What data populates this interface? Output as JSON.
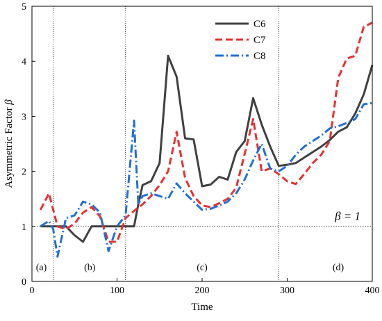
{
  "chart_data": {
    "type": "line",
    "xlabel": "Time",
    "ylabel": "Asymmetric Factor",
    "ylabel_symbol": "β",
    "xlim": [
      0,
      400
    ],
    "ylim": [
      0,
      5
    ],
    "xticks": [
      0,
      100,
      200,
      300,
      400
    ],
    "yticks": [
      0,
      1,
      2,
      3,
      4,
      5
    ],
    "grid": false,
    "legend_position": "top-right",
    "reference_line": {
      "y": 1,
      "label": "β = 1",
      "color": "#555555",
      "style": "dotted"
    },
    "phase_dividers": [
      25,
      110,
      290
    ],
    "phase_labels": [
      {
        "label": "(a)",
        "x": 11,
        "y": 0.2
      },
      {
        "label": "(b)",
        "x": 68,
        "y": 0.2
      },
      {
        "label": "(c)",
        "x": 200,
        "y": 0.2
      },
      {
        "label": "(d)",
        "x": 360,
        "y": 0.2
      }
    ],
    "series": [
      {
        "name": "C6",
        "color": "#404040",
        "dash": "solid",
        "points": [
          [
            10,
            1.0
          ],
          [
            20,
            1.0
          ],
          [
            30,
            1.0
          ],
          [
            40,
            1.0
          ],
          [
            50,
            0.84
          ],
          [
            60,
            0.72
          ],
          [
            70,
            1.0
          ],
          [
            80,
            1.0
          ],
          [
            90,
            1.0
          ],
          [
            100,
            1.0
          ],
          [
            110,
            1.0
          ],
          [
            120,
            1.0
          ],
          [
            125,
            1.4
          ],
          [
            130,
            1.75
          ],
          [
            140,
            1.82
          ],
          [
            150,
            2.15
          ],
          [
            160,
            4.1
          ],
          [
            170,
            3.72
          ],
          [
            180,
            2.6
          ],
          [
            190,
            2.58
          ],
          [
            200,
            1.73
          ],
          [
            210,
            1.76
          ],
          [
            220,
            1.9
          ],
          [
            230,
            1.85
          ],
          [
            240,
            2.35
          ],
          [
            250,
            2.55
          ],
          [
            260,
            3.33
          ],
          [
            270,
            2.85
          ],
          [
            280,
            2.45
          ],
          [
            290,
            2.1
          ],
          [
            300,
            2.12
          ],
          [
            310,
            2.15
          ],
          [
            320,
            2.25
          ],
          [
            330,
            2.35
          ],
          [
            340,
            2.45
          ],
          [
            350,
            2.57
          ],
          [
            360,
            2.72
          ],
          [
            370,
            2.8
          ],
          [
            380,
            3.05
          ],
          [
            390,
            3.4
          ],
          [
            400,
            3.93
          ]
        ]
      },
      {
        "name": "C7",
        "color": "#e83030",
        "dash": "10,5",
        "points": [
          [
            10,
            1.3
          ],
          [
            20,
            1.6
          ],
          [
            30,
            1.0
          ],
          [
            40,
            0.95
          ],
          [
            50,
            1.05
          ],
          [
            60,
            1.25
          ],
          [
            70,
            1.35
          ],
          [
            80,
            1.18
          ],
          [
            90,
            0.72
          ],
          [
            100,
            0.72
          ],
          [
            110,
            1.15
          ],
          [
            120,
            1.28
          ],
          [
            130,
            1.4
          ],
          [
            140,
            1.55
          ],
          [
            150,
            1.75
          ],
          [
            160,
            2.0
          ],
          [
            170,
            2.72
          ],
          [
            180,
            1.88
          ],
          [
            190,
            1.55
          ],
          [
            200,
            1.38
          ],
          [
            210,
            1.35
          ],
          [
            220,
            1.42
          ],
          [
            230,
            1.5
          ],
          [
            240,
            1.7
          ],
          [
            250,
            2.32
          ],
          [
            260,
            2.95
          ],
          [
            270,
            2.0
          ],
          [
            280,
            2.05
          ],
          [
            290,
            1.95
          ],
          [
            300,
            1.82
          ],
          [
            310,
            1.77
          ],
          [
            320,
            1.95
          ],
          [
            330,
            2.15
          ],
          [
            340,
            2.3
          ],
          [
            350,
            2.55
          ],
          [
            360,
            3.7
          ],
          [
            370,
            4.05
          ],
          [
            380,
            4.1
          ],
          [
            390,
            4.63
          ],
          [
            400,
            4.7
          ]
        ]
      },
      {
        "name": "C8",
        "color": "#1f6fd9",
        "dash": "12,4,2,4",
        "points": [
          [
            10,
            1.0
          ],
          [
            20,
            1.1
          ],
          [
            25,
            0.95
          ],
          [
            30,
            0.45
          ],
          [
            40,
            1.15
          ],
          [
            50,
            1.2
          ],
          [
            60,
            1.45
          ],
          [
            70,
            1.4
          ],
          [
            80,
            1.25
          ],
          [
            90,
            0.55
          ],
          [
            100,
            1.0
          ],
          [
            110,
            1.2
          ],
          [
            120,
            2.92
          ],
          [
            125,
            1.4
          ],
          [
            130,
            1.55
          ],
          [
            140,
            1.6
          ],
          [
            150,
            1.55
          ],
          [
            160,
            1.5
          ],
          [
            170,
            1.78
          ],
          [
            180,
            1.6
          ],
          [
            190,
            1.45
          ],
          [
            200,
            1.3
          ],
          [
            210,
            1.32
          ],
          [
            220,
            1.38
          ],
          [
            230,
            1.45
          ],
          [
            240,
            1.6
          ],
          [
            250,
            1.85
          ],
          [
            260,
            2.2
          ],
          [
            270,
            2.5
          ],
          [
            280,
            2.05
          ],
          [
            290,
            2.0
          ],
          [
            300,
            2.1
          ],
          [
            310,
            2.3
          ],
          [
            320,
            2.45
          ],
          [
            330,
            2.55
          ],
          [
            340,
            2.65
          ],
          [
            350,
            2.78
          ],
          [
            360,
            2.82
          ],
          [
            370,
            2.88
          ],
          [
            380,
            2.95
          ],
          [
            390,
            3.22
          ],
          [
            400,
            3.24
          ]
        ]
      }
    ]
  }
}
